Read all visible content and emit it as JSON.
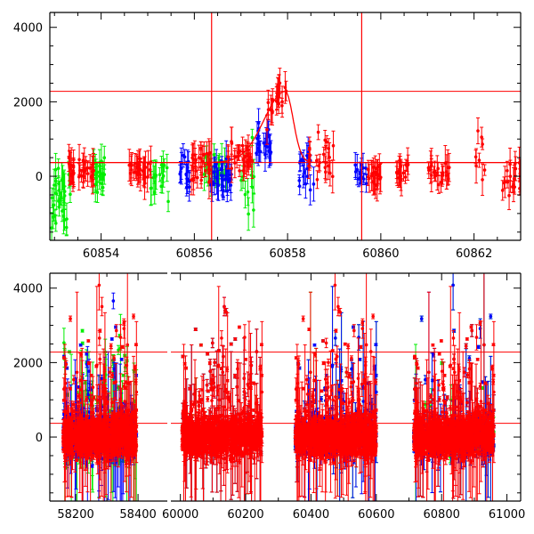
{
  "chart_data": [
    {
      "type": "scatter",
      "panel": "zoom",
      "title": "",
      "xlabel": "",
      "ylabel": "",
      "xlim": [
        60852.9,
        60863.0
      ],
      "ylim": [
        -1720,
        4400
      ],
      "xticks": [
        60854,
        60856,
        60858,
        60860,
        60862
      ],
      "xtick_labels": [
        "60854",
        "60856",
        "60858",
        "60860",
        "60862"
      ],
      "yticks": [
        0,
        2000,
        4000
      ],
      "ytick_labels": [
        "0",
        "2000",
        "4000"
      ],
      "hlines": [
        2280,
        370
      ],
      "vlines": [
        60856.37,
        60859.59
      ],
      "model": {
        "baseline": 370,
        "peak": 2280,
        "t_peak": 60857.95,
        "rise_width": 0.45,
        "decay_width": 0.17,
        "color": "#ff0000"
      },
      "series": [
        {
          "band": "green",
          "color": "#00ee00",
          "segments": [
            [
              60852.9,
              60853.35,
              -500,
              550,
              30
            ],
            [
              60853.8,
              60854.15,
              100,
              220,
              22
            ],
            [
              60855.05,
              60855.45,
              0,
              300,
              16
            ],
            [
              60856.2,
              60856.7,
              150,
              200,
              28
            ],
            [
              60857.0,
              60857.3,
              200,
              500,
              12
            ]
          ]
        },
        {
          "band": "red",
          "color": "#ff0000",
          "segments": [
            [
              60853.3,
              60853.85,
              200,
              150,
              35
            ],
            [
              60854.6,
              60855.1,
              150,
              160,
              30
            ],
            [
              60855.9,
              60856.35,
              300,
              220,
              28
            ],
            [
              60856.7,
              60857.25,
              450,
              180,
              30
            ],
            [
              60858.4,
              60859.0,
              550,
              350,
              22
            ],
            [
              60859.7,
              60860.0,
              0,
              150,
              20
            ],
            [
              60860.3,
              60860.6,
              100,
              150,
              18
            ],
            [
              60861.0,
              60861.5,
              120,
              180,
              22
            ],
            [
              60862.0,
              60862.25,
              400,
              400,
              8
            ],
            [
              60862.6,
              60863.0,
              -100,
              300,
              18
            ]
          ]
        },
        {
          "band": "blue",
          "color": "#0000ff",
          "segments": [
            [
              60855.65,
              60855.9,
              50,
              200,
              14
            ],
            [
              60856.35,
              60856.8,
              0,
              220,
              30
            ],
            [
              60857.3,
              60857.65,
              850,
              220,
              22
            ],
            [
              60858.25,
              60858.6,
              250,
              300,
              16
            ],
            [
              60859.45,
              60859.7,
              0,
              150,
              14
            ]
          ]
        }
      ]
    },
    {
      "type": "scatter",
      "panel": "full-left",
      "xlim": [
        58117,
        58494
      ],
      "ylim": [
        -1720,
        4400
      ],
      "xticks": [
        58200,
        58400
      ],
      "xtick_labels": [
        "58200",
        "58400"
      ],
      "yticks": [
        0,
        2000,
        4000
      ],
      "ytick_labels": [
        "0",
        "2000",
        "4000"
      ],
      "hlines": [
        2280,
        370
      ],
      "segments": [
        [
          58160,
          58395
        ]
      ]
    },
    {
      "type": "scatter",
      "panel": "full-right",
      "xlim": [
        59971,
        61042
      ],
      "ylim": [
        -1720,
        4400
      ],
      "xticks": [
        60000,
        60200,
        60400,
        60600,
        60800,
        61000
      ],
      "xtick_labels": [
        "60000",
        "60200",
        "60400",
        "60600",
        "60800",
        "61000"
      ],
      "hlines": [
        2280,
        370
      ],
      "segments": [
        [
          60005,
          60250
        ],
        [
          60352,
          60600
        ],
        [
          60715,
          60960
        ]
      ]
    }
  ]
}
